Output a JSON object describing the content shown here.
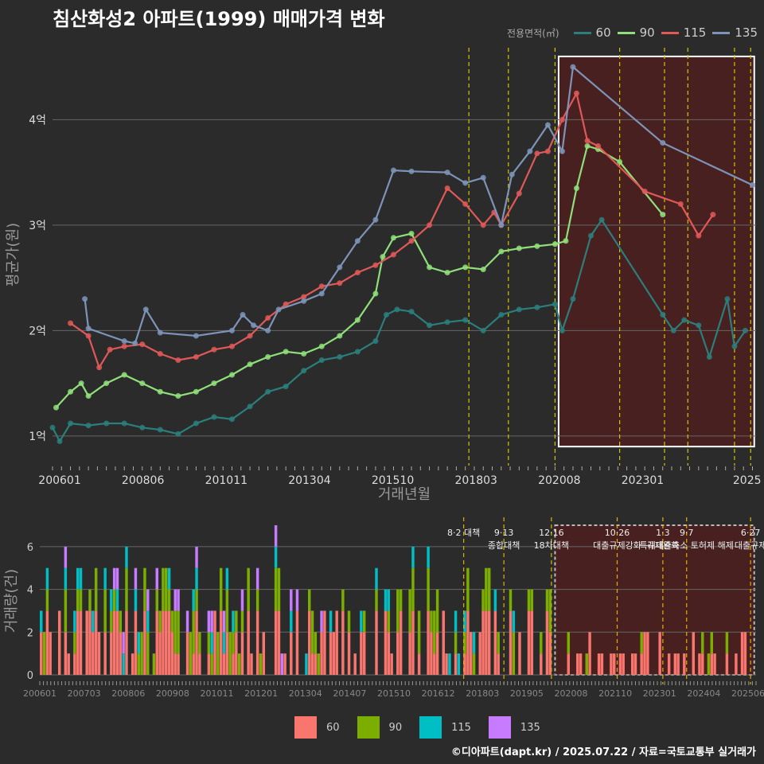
{
  "title": "침산화성2 아파트(1999) 매매가격 변화",
  "legend": {
    "title": "전용면적(㎡)",
    "items": [
      {
        "label": "60",
        "line_color": "#2a7f7d",
        "bar_color": "#f8766d"
      },
      {
        "label": "90",
        "line_color": "#8fe07a",
        "bar_color": "#7cae00"
      },
      {
        "label": "115",
        "line_color": "#e05858",
        "bar_color": "#00bfc4"
      },
      {
        "label": "135",
        "line_color": "#7d94b8",
        "bar_color": "#c77cff"
      }
    ]
  },
  "footer": "©디아파트(dapt.kr) / 2025.07.22 / 자료=국토교통부 실거래가",
  "chart_data": [
    {
      "type": "line",
      "title": "침산화성2 아파트(1999) 매매가격 변화",
      "xlabel": "거래년월",
      "ylabel": "평균가(원)",
      "x_ticks": [
        "200601",
        "200806",
        "201011",
        "201304",
        "201510",
        "201803",
        "202008",
        "202301",
        "2025"
      ],
      "y_ticks": [
        {
          "value": 1,
          "label": "1억"
        },
        {
          "value": 2,
          "label": "2억"
        },
        {
          "value": 3,
          "label": "3억"
        },
        {
          "value": 4,
          "label": "4억"
        }
      ],
      "xlim": [
        2006.0,
        2025.6
      ],
      "ylim": [
        0.72,
        4.72
      ],
      "highlight_range": [
        2020.1,
        2025.55
      ],
      "policy_lines": [
        2017.6,
        2018.7,
        2020.0,
        2021.8,
        2023.05,
        2023.7,
        2025.0,
        2025.45
      ],
      "series": [
        {
          "name": "60",
          "color": "#2a7f7d",
          "points": [
            [
              2006.0,
              1.08
            ],
            [
              2006.2,
              0.95
            ],
            [
              2006.5,
              1.12
            ],
            [
              2007.0,
              1.1
            ],
            [
              2007.5,
              1.12
            ],
            [
              2008.0,
              1.12
            ],
            [
              2008.5,
              1.08
            ],
            [
              2009.0,
              1.06
            ],
            [
              2009.5,
              1.02
            ],
            [
              2010.0,
              1.12
            ],
            [
              2010.5,
              1.18
            ],
            [
              2011.0,
              1.16
            ],
            [
              2011.5,
              1.28
            ],
            [
              2012.0,
              1.42
            ],
            [
              2012.5,
              1.47
            ],
            [
              2013.0,
              1.62
            ],
            [
              2013.5,
              1.72
            ],
            [
              2014.0,
              1.75
            ],
            [
              2014.5,
              1.8
            ],
            [
              2015.0,
              1.9
            ],
            [
              2015.3,
              2.15
            ],
            [
              2015.6,
              2.2
            ],
            [
              2016.0,
              2.18
            ],
            [
              2016.5,
              2.05
            ],
            [
              2017.0,
              2.08
            ],
            [
              2017.5,
              2.1
            ],
            [
              2018.0,
              2.0
            ],
            [
              2018.5,
              2.15
            ],
            [
              2019.0,
              2.2
            ],
            [
              2019.5,
              2.22
            ],
            [
              2020.0,
              2.25
            ],
            [
              2020.2,
              2.0
            ],
            [
              2020.5,
              2.3
            ],
            [
              2021.0,
              2.9
            ],
            [
              2021.3,
              3.05
            ],
            [
              2023.0,
              2.15
            ],
            [
              2023.3,
              2.0
            ],
            [
              2023.6,
              2.1
            ],
            [
              2024.0,
              2.05
            ],
            [
              2024.3,
              1.75
            ],
            [
              2024.8,
              2.3
            ],
            [
              2025.0,
              1.85
            ],
            [
              2025.3,
              2.0
            ]
          ]
        },
        {
          "name": "90",
          "color": "#8fe07a",
          "points": [
            [
              2006.1,
              1.27
            ],
            [
              2006.5,
              1.42
            ],
            [
              2006.8,
              1.5
            ],
            [
              2007.0,
              1.38
            ],
            [
              2007.5,
              1.5
            ],
            [
              2008.0,
              1.58
            ],
            [
              2008.5,
              1.5
            ],
            [
              2009.0,
              1.42
            ],
            [
              2009.5,
              1.38
            ],
            [
              2010.0,
              1.42
            ],
            [
              2010.5,
              1.5
            ],
            [
              2011.0,
              1.58
            ],
            [
              2011.5,
              1.68
            ],
            [
              2012.0,
              1.75
            ],
            [
              2012.5,
              1.8
            ],
            [
              2013.0,
              1.78
            ],
            [
              2013.5,
              1.85
            ],
            [
              2014.0,
              1.95
            ],
            [
              2014.5,
              2.1
            ],
            [
              2015.0,
              2.35
            ],
            [
              2015.2,
              2.7
            ],
            [
              2015.5,
              2.88
            ],
            [
              2016.0,
              2.92
            ],
            [
              2016.5,
              2.6
            ],
            [
              2017.0,
              2.55
            ],
            [
              2017.5,
              2.6
            ],
            [
              2018.0,
              2.58
            ],
            [
              2018.5,
              2.75
            ],
            [
              2019.0,
              2.78
            ],
            [
              2019.5,
              2.8
            ],
            [
              2020.0,
              2.82
            ],
            [
              2020.3,
              2.85
            ],
            [
              2020.6,
              3.35
            ],
            [
              2020.9,
              3.75
            ],
            [
              2021.2,
              3.72
            ],
            [
              2021.8,
              3.6
            ],
            [
              2023.0,
              3.1
            ]
          ]
        },
        {
          "name": "115",
          "color": "#e05858",
          "points": [
            [
              2006.5,
              2.07
            ],
            [
              2007.0,
              1.95
            ],
            [
              2007.3,
              1.65
            ],
            [
              2007.6,
              1.82
            ],
            [
              2008.0,
              1.85
            ],
            [
              2008.5,
              1.87
            ],
            [
              2009.0,
              1.78
            ],
            [
              2009.5,
              1.72
            ],
            [
              2010.0,
              1.75
            ],
            [
              2010.5,
              1.82
            ],
            [
              2011.0,
              1.85
            ],
            [
              2011.5,
              1.95
            ],
            [
              2012.0,
              2.12
            ],
            [
              2012.5,
              2.25
            ],
            [
              2013.0,
              2.32
            ],
            [
              2013.5,
              2.42
            ],
            [
              2014.0,
              2.45
            ],
            [
              2014.5,
              2.55
            ],
            [
              2015.0,
              2.62
            ],
            [
              2015.5,
              2.72
            ],
            [
              2016.0,
              2.85
            ],
            [
              2016.5,
              3.0
            ],
            [
              2017.0,
              3.35
            ],
            [
              2017.5,
              3.2
            ],
            [
              2018.0,
              3.0
            ],
            [
              2018.3,
              3.12
            ],
            [
              2018.5,
              3.0
            ],
            [
              2019.0,
              3.3
            ],
            [
              2019.5,
              3.68
            ],
            [
              2019.8,
              3.7
            ],
            [
              2020.2,
              4.0
            ],
            [
              2020.6,
              4.25
            ],
            [
              2020.9,
              3.8
            ],
            [
              2021.2,
              3.75
            ],
            [
              2022.5,
              3.32
            ],
            [
              2023.5,
              3.2
            ],
            [
              2024.0,
              2.9
            ],
            [
              2024.4,
              3.1
            ]
          ]
        },
        {
          "name": "135",
          "color": "#7d94b8",
          "points": [
            [
              2006.9,
              2.3
            ],
            [
              2007.0,
              2.02
            ],
            [
              2008.0,
              1.9
            ],
            [
              2008.3,
              1.88
            ],
            [
              2008.6,
              2.2
            ],
            [
              2009.0,
              1.98
            ],
            [
              2010.0,
              1.95
            ],
            [
              2011.0,
              2.0
            ],
            [
              2011.3,
              2.15
            ],
            [
              2011.6,
              2.05
            ],
            [
              2012.0,
              2.0
            ],
            [
              2012.3,
              2.2
            ],
            [
              2013.0,
              2.28
            ],
            [
              2013.5,
              2.35
            ],
            [
              2014.0,
              2.6
            ],
            [
              2014.5,
              2.85
            ],
            [
              2015.0,
              3.05
            ],
            [
              2015.5,
              3.52
            ],
            [
              2016.0,
              3.51
            ],
            [
              2017.0,
              3.5
            ],
            [
              2017.5,
              3.4
            ],
            [
              2018.0,
              3.45
            ],
            [
              2018.5,
              3.0
            ],
            [
              2018.8,
              3.48
            ],
            [
              2019.3,
              3.7
            ],
            [
              2019.8,
              3.95
            ],
            [
              2020.2,
              3.7
            ],
            [
              2020.5,
              4.5
            ],
            [
              2023.0,
              3.78
            ],
            [
              2025.5,
              3.38
            ]
          ]
        }
      ]
    },
    {
      "type": "bar",
      "title": "거래량",
      "ylabel": "거래량(건)",
      "x_ticks": [
        "200601",
        "200703",
        "200806",
        "200908",
        "201011",
        "201201",
        "201304",
        "201407",
        "201510",
        "201612",
        "201803",
        "201905",
        "202008",
        "202110",
        "202301",
        "202404",
        "202506"
      ],
      "y_ticks": [
        0,
        2,
        4,
        6
      ],
      "ylim": [
        0,
        7
      ],
      "xlim": [
        2006.0,
        2025.6
      ],
      "highlight_range": [
        2020.1,
        2025.55
      ],
      "stacked": true,
      "series_names": [
        "60",
        "90",
        "115",
        "135"
      ],
      "annotations": [
        {
          "x": 2017.6,
          "label": "8·2 대책"
        },
        {
          "x": 2018.7,
          "label": "9·13\n종합대책"
        },
        {
          "x": 2020.0,
          "label": "12·16\n18차대책"
        },
        {
          "x": 2021.8,
          "label": "10·26\n대출규제강화"
        },
        {
          "x": 2023.05,
          "label": "1·3\n규제완화"
        },
        {
          "x": 2023.7,
          "label": "9·7\n특례대출축소 토허제 해제"
        },
        {
          "x": 2025.45,
          "label": "6·27\n대출규제"
        }
      ]
    }
  ]
}
